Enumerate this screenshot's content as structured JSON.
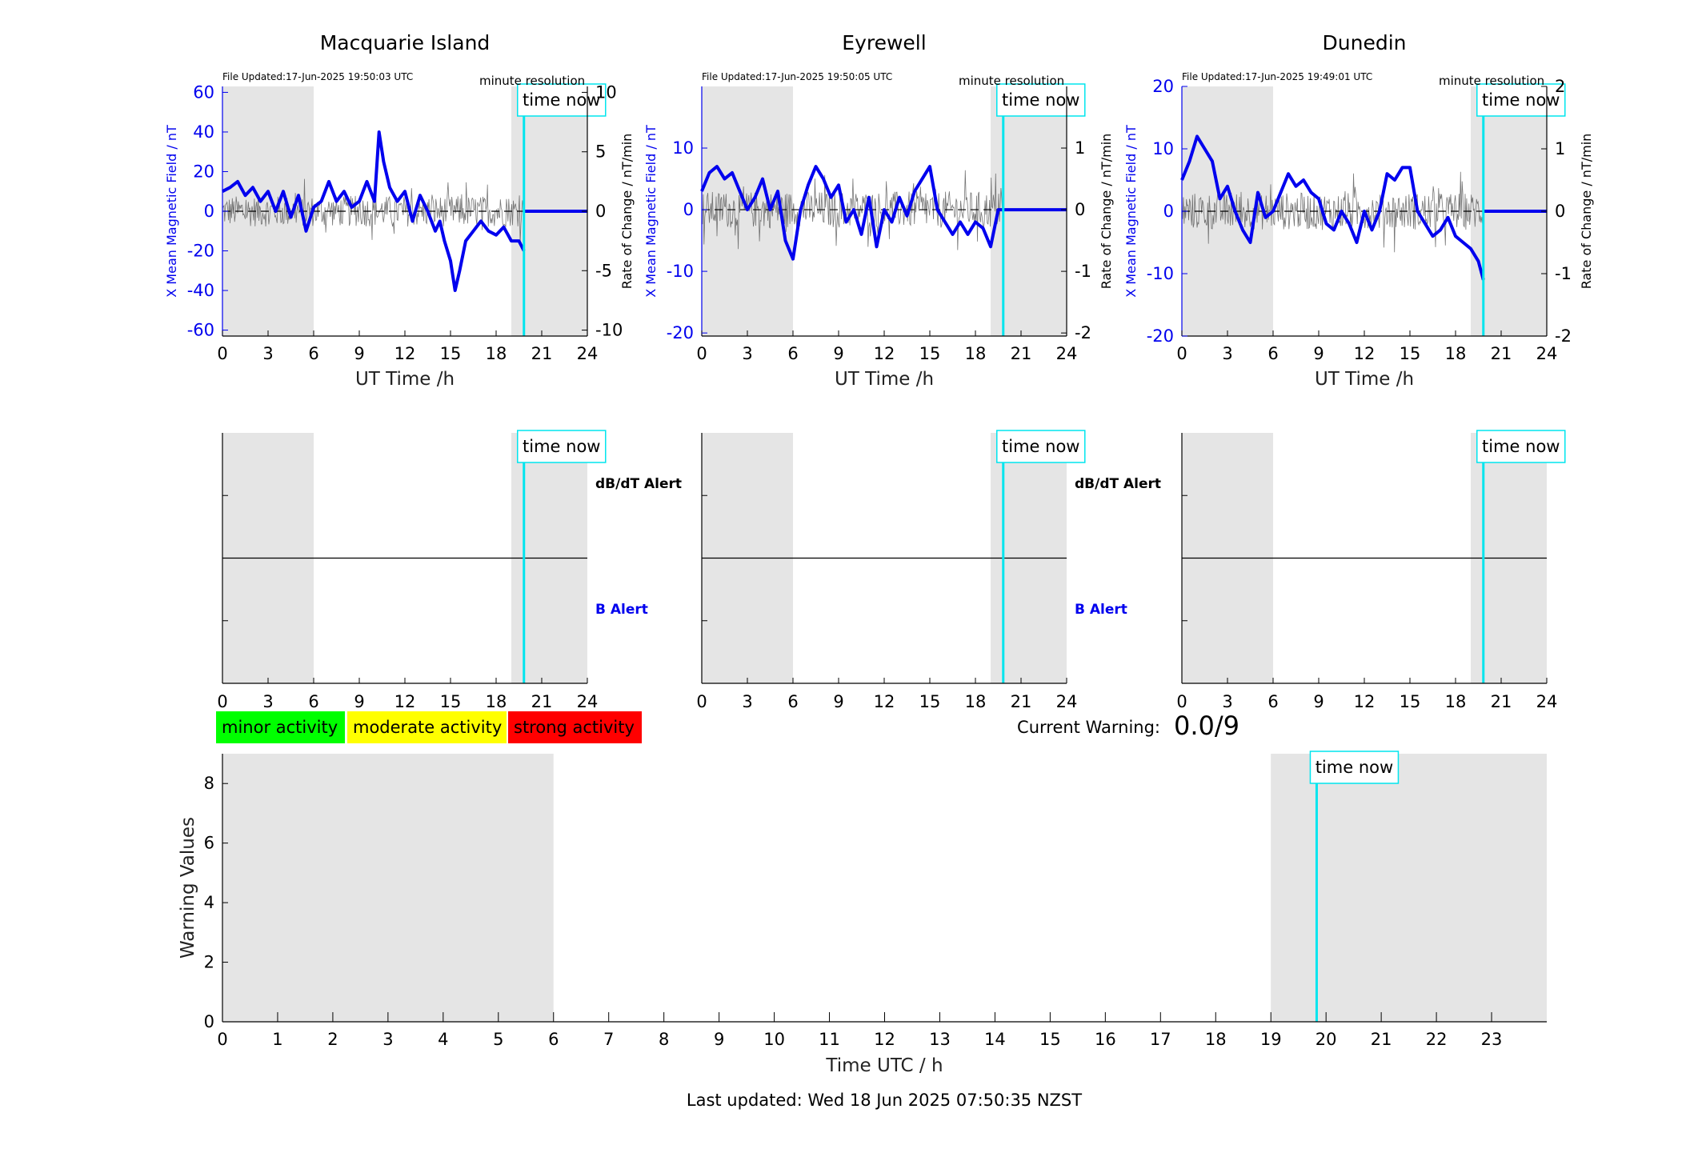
{
  "page": {
    "last_updated": "Last updated: Wed 18 Jun 2025 07:50:35 NZST",
    "current_warning_label": "Current Warning:",
    "current_warning_value": "0.0/9",
    "time_now_label": "time now",
    "resolution_label": "minute resolution",
    "alert_dbdt_label": "dB/dT Alert",
    "alert_b_label": "B Alert",
    "legend": [
      {
        "label": "minor activity",
        "color": "#00ff00"
      },
      {
        "label": "moderate activity",
        "color": "#ffff00"
      },
      {
        "label": "strong activity",
        "color": "#ff0000"
      }
    ],
    "colors": {
      "field": "#0000ee",
      "rate": "#555555",
      "time_now": "#00e5ee",
      "shade": "#e5e5e5",
      "b_alert": "#0000ee"
    }
  },
  "chart_data": [
    {
      "type": "line",
      "station": "Macquarie Island",
      "title": "Macquarie Island",
      "file_updated": "File Updated:17-Jun-2025 19:50:03 UTC",
      "xlabel": "UT Time /h",
      "ylabel_left": "X Mean Magnetic Field / nT",
      "ylabel_right": "Rate of Change / nT/min",
      "xlim": [
        0,
        24
      ],
      "xticks": [
        0,
        3,
        6,
        9,
        12,
        15,
        18,
        21,
        24
      ],
      "ylim_left": [
        -63,
        63
      ],
      "yticks_left": [
        -60,
        -40,
        -20,
        0,
        20,
        40,
        60
      ],
      "ylim_right": [
        -10.5,
        10.5
      ],
      "yticks_right": [
        -10,
        -5,
        0,
        5,
        10
      ],
      "shaded_hours": [
        [
          0,
          6
        ],
        [
          19,
          24
        ]
      ],
      "time_now": 19.83,
      "rate_amplitude": 1.3,
      "series": [
        {
          "name": "X Mean Magnetic Field",
          "x": [
            0,
            0.5,
            1,
            1.5,
            2,
            2.5,
            3,
            3.5,
            4,
            4.5,
            5,
            5.5,
            6,
            6.5,
            7,
            7.5,
            8,
            8.5,
            9,
            9.5,
            10,
            10.3,
            10.6,
            11,
            11.5,
            12,
            12.5,
            13,
            13.5,
            14,
            14.3,
            14.6,
            15,
            15.3,
            15.6,
            16,
            16.5,
            17,
            17.5,
            18,
            18.5,
            19,
            19.5,
            19.83
          ],
          "y": [
            10,
            12,
            15,
            8,
            12,
            5,
            10,
            0,
            10,
            -3,
            8,
            -10,
            2,
            5,
            15,
            5,
            10,
            2,
            5,
            15,
            5,
            40,
            25,
            12,
            5,
            10,
            -5,
            8,
            0,
            -10,
            -5,
            -15,
            -25,
            -40,
            -30,
            -15,
            -10,
            -5,
            -10,
            -12,
            -8,
            -15,
            -15,
            -20
          ]
        },
        {
          "name": "Rate of Change",
          "x": [
            0,
            19.83
          ],
          "y": [
            0,
            0
          ]
        }
      ]
    },
    {
      "type": "line",
      "station": "Eyrewell",
      "title": "Eyrewell",
      "file_updated": "File Updated:17-Jun-2025 19:50:05 UTC",
      "xlabel": "UT Time /h",
      "ylabel_left": "X Mean Magnetic Field / nT",
      "ylabel_right": "Rate of Change / nT/min",
      "xlim": [
        0,
        24
      ],
      "xticks": [
        0,
        3,
        6,
        9,
        12,
        15,
        18,
        21,
        24
      ],
      "ylim_left": [
        -20.5,
        20
      ],
      "yticks_left": [
        -20,
        -10,
        0,
        10
      ],
      "ylim_right": [
        -2.05,
        2
      ],
      "yticks_right": [
        -2,
        -1,
        0,
        1
      ],
      "shaded_hours": [
        [
          0,
          6
        ],
        [
          19,
          24
        ]
      ],
      "time_now": 19.83,
      "rate_amplitude": 0.3,
      "series": [
        {
          "name": "X Mean Magnetic Field",
          "x": [
            0,
            0.5,
            1,
            1.5,
            2,
            2.5,
            3,
            3.5,
            4,
            4.5,
            5,
            5.5,
            6,
            6.5,
            7,
            7.5,
            8,
            8.5,
            9,
            9.5,
            10,
            10.5,
            11,
            11.5,
            12,
            12.5,
            13,
            13.5,
            14,
            14.5,
            15,
            15.5,
            16,
            16.5,
            17,
            17.5,
            18,
            18.5,
            19,
            19.5,
            19.83
          ],
          "y": [
            3,
            6,
            7,
            5,
            6,
            3,
            0,
            2,
            5,
            0,
            3,
            -5,
            -8,
            0,
            4,
            7,
            5,
            2,
            4,
            -2,
            0,
            -4,
            2,
            -6,
            0,
            -2,
            2,
            -1,
            3,
            5,
            7,
            0,
            -2,
            -4,
            -2,
            -4,
            -2,
            -3,
            -6,
            0,
            0
          ]
        },
        {
          "name": "Rate of Change",
          "x": [
            0,
            19.83
          ],
          "y": [
            0,
            0
          ]
        }
      ]
    },
    {
      "type": "line",
      "station": "Dunedin",
      "title": "Dunedin",
      "file_updated": "File Updated:17-Jun-2025 19:49:01 UTC",
      "xlabel": "UT Time /h",
      "ylabel_left": "X Mean Magnetic Field / nT",
      "ylabel_right": "Rate of Change / nT/min",
      "xlim": [
        0,
        24
      ],
      "xticks": [
        0,
        3,
        6,
        9,
        12,
        15,
        18,
        21,
        24
      ],
      "ylim_left": [
        -20,
        20
      ],
      "yticks_left": [
        -20,
        -10,
        0,
        10,
        20
      ],
      "ylim_right": [
        -2,
        2
      ],
      "yticks_right": [
        -2,
        -1,
        0,
        1,
        2
      ],
      "shaded_hours": [
        [
          0,
          6
        ],
        [
          19,
          24
        ]
      ],
      "time_now": 19.83,
      "rate_amplitude": 0.3,
      "series": [
        {
          "name": "X Mean Magnetic Field",
          "x": [
            0,
            0.5,
            1,
            1.5,
            2,
            2.5,
            3,
            3.5,
            4,
            4.5,
            5,
            5.5,
            6,
            6.5,
            7,
            7.5,
            8,
            8.5,
            9,
            9.5,
            10,
            10.5,
            11,
            11.5,
            12,
            12.5,
            13,
            13.5,
            14,
            14.5,
            15,
            15.5,
            16,
            16.5,
            17,
            17.5,
            18,
            18.5,
            19,
            19.5,
            19.83
          ],
          "y": [
            5,
            8,
            12,
            10,
            8,
            2,
            4,
            0,
            -3,
            -5,
            3,
            -1,
            0,
            3,
            6,
            4,
            5,
            3,
            2,
            -2,
            -3,
            0,
            -2,
            -5,
            0,
            -3,
            0,
            6,
            5,
            7,
            7,
            0,
            -2,
            -4,
            -3,
            -1,
            -4,
            -5,
            -6,
            -8,
            -11
          ]
        },
        {
          "name": "Rate of Change",
          "x": [
            0,
            19.83
          ],
          "y": [
            0,
            0
          ]
        }
      ]
    },
    {
      "type": "line",
      "title": "",
      "xlabel": "Time UTC / h",
      "ylabel": "Warning Values",
      "xlim": [
        0,
        24
      ],
      "xticks": [
        0,
        1,
        2,
        3,
        4,
        5,
        6,
        7,
        8,
        9,
        10,
        11,
        12,
        13,
        14,
        15,
        16,
        17,
        18,
        19,
        20,
        21,
        22,
        23
      ],
      "ylim": [
        0,
        9
      ],
      "yticks": [
        0,
        2,
        4,
        6,
        8
      ],
      "shaded_hours": [
        [
          0,
          6
        ],
        [
          19,
          24
        ]
      ],
      "time_now": 19.83,
      "series": [
        {
          "name": "Warning Values",
          "x": [],
          "y": []
        }
      ]
    }
  ]
}
